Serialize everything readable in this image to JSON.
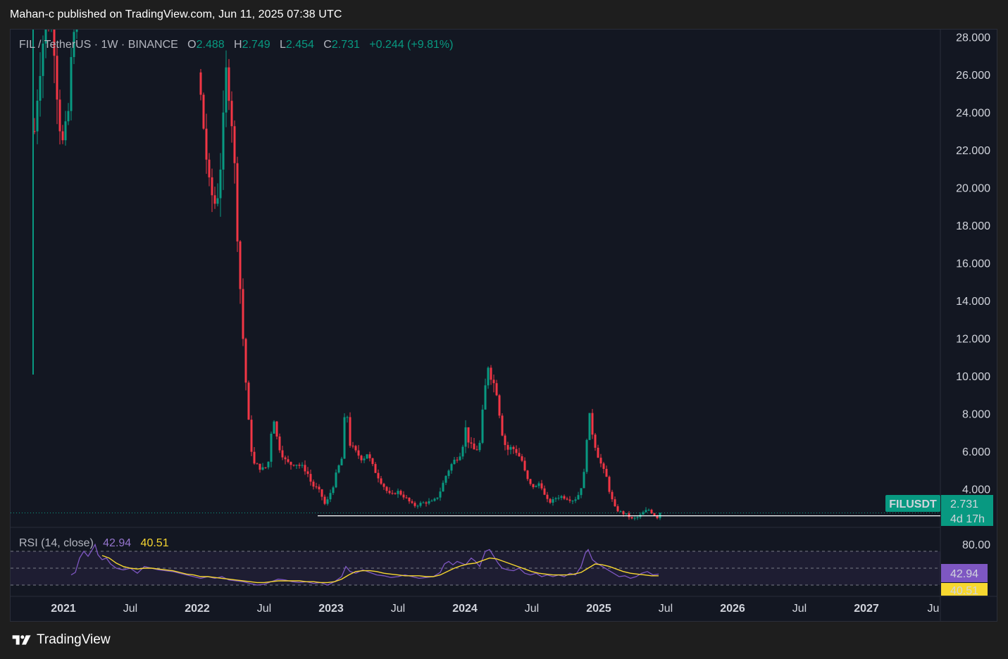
{
  "header": {
    "published_line": "Mahan-c published on TradingView.com, Jun 11, 2025 07:38 UTC"
  },
  "legend": {
    "symbol": "FIL / TetherUS · 1W · BINANCE",
    "open_label": "O",
    "open_value": "2.488",
    "high_label": "H",
    "high_value": "2.749",
    "low_label": "L",
    "low_value": "2.454",
    "close_label": "C",
    "close_value": "2.731",
    "change": "+0.244 (+9.81%)"
  },
  "price_axis": {
    "ticks": [
      "28.000",
      "26.000",
      "24.000",
      "22.000",
      "20.000",
      "18.000",
      "16.000",
      "14.000",
      "12.000",
      "10.000",
      "8.000",
      "6.000",
      "4.000"
    ],
    "tick_values": [
      28,
      26,
      24,
      22,
      20,
      18,
      16,
      14,
      12,
      10,
      8,
      6,
      4
    ]
  },
  "price_tag": {
    "ticker": "FILUSDT",
    "price": "2.731",
    "countdown": "4d 17h",
    "color": "#089981"
  },
  "support_line": {
    "price": 2.5,
    "color": "#ffffff"
  },
  "rsi": {
    "title": "RSI (14, close)",
    "rsi_value": "42.94",
    "ma_value": "40.51",
    "axis_tick": "80.00",
    "rsi_color": "#7e57c2",
    "ma_color": "#f7d730",
    "band_upper": 70,
    "band_middle": 50,
    "band_lower": 30
  },
  "time_axis": {
    "labels": [
      {
        "text": "2021",
        "year": true
      },
      {
        "text": "Jul",
        "year": false
      },
      {
        "text": "2022",
        "year": true
      },
      {
        "text": "Jul",
        "year": false
      },
      {
        "text": "2023",
        "year": true
      },
      {
        "text": "Jul",
        "year": false
      },
      {
        "text": "2024",
        "year": true
      },
      {
        "text": "Jul",
        "year": false
      },
      {
        "text": "2025",
        "year": true
      },
      {
        "text": "Jul",
        "year": false
      },
      {
        "text": "2026",
        "year": true
      },
      {
        "text": "Jul",
        "year": false
      },
      {
        "text": "2027",
        "year": true
      },
      {
        "text": "Ju",
        "year": false
      }
    ]
  },
  "chart_data": {
    "type": "candlestick",
    "symbol": "FILUSDT",
    "interval": "1W",
    "ylim": [
      2,
      28.8
    ],
    "up_color": "#089981",
    "down_color": "#f23645",
    "rsi_ylim": [
      0,
      100
    ],
    "rsi_visible_tick": 80
  },
  "footer": {
    "brand": "TradingView"
  }
}
